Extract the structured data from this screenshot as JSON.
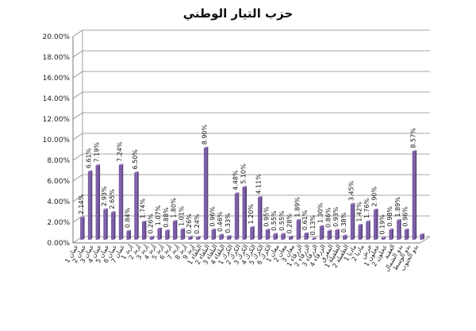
{
  "chart_data": {
    "type": "bar",
    "title": "حزب التيار الوطني",
    "ylim": [
      0,
      20
    ],
    "y_ticks": [
      "0.00%",
      "2.00%",
      "4.00%",
      "6.00%",
      "8.00%",
      "10.00%",
      "12.00%",
      "14.00%",
      "16.00%",
      "18.00%",
      "20.00%"
    ],
    "grid": true,
    "legend": "none",
    "bar_color": "#7e5fa8",
    "categories": [
      "عمان 1",
      "عمان 2",
      "عمان 3",
      "عمان 4",
      "عمان 5",
      "عمان 6",
      "عمان 7",
      "إربد 1",
      "إربد 2",
      "إربد 3",
      "إربد 4",
      "إربد 5",
      "إربد 6",
      "إربد 7",
      "إربد 8",
      "إربد 9",
      "البلقاء 1",
      "البلقاء 2",
      "البلقاء 3",
      "البلقاء 4",
      "الكرك 1",
      "الكرك 2",
      "الكرك 3",
      "الكرك 4",
      "الكرك 5",
      "الكرك 6",
      "معان 1",
      "معان 2",
      "معان 3",
      "الزرقاء 1",
      "الزرقاء 2",
      "الزرقاء 3",
      "الزرقاء 4",
      "المفرق",
      "الطفيلة 1",
      "الطفيلة 2",
      "مادبا 1",
      "مادبا 2",
      "جرش",
      "عجلون 1",
      "عجلون 2",
      "العقبة",
      "بدو الشمال",
      "بدو الوسط",
      "بدو الجنوب"
    ],
    "values": [
      2.14,
      6.61,
      7.19,
      2.93,
      2.65,
      7.24,
      0.84,
      6.5,
      1.74,
      0.26,
      1.07,
      0.88,
      1.8,
      1.01,
      0.26,
      0.24,
      8.9,
      0.96,
      0.46,
      0.33,
      4.48,
      5.1,
      1.2,
      4.11,
      0.95,
      0.55,
      0.55,
      0.28,
      1.89,
      0.61,
      0.13,
      1.3,
      0.86,
      0.93,
      0.38,
      3.45,
      1.42,
      1.76,
      2.9,
      0.19,
      0.98,
      1.89,
      0.96,
      8.57,
      0.5
    ],
    "data_labels": [
      "2.14%",
      "6.61%",
      "7.19%",
      "2.93%",
      "2.65%",
      "7.24%",
      "0.84%",
      "6.50%",
      "1.74%",
      "0.26%",
      "1.07%",
      "0.88%",
      "1.80%",
      "1.01%",
      "0.26%",
      "0.24%",
      "8.90%",
      "0.96%",
      "0.46%",
      "0.33%",
      "4.48%",
      "5.10%",
      "1.20%",
      "4.11%",
      "0.95%",
      "0.55%",
      "0.55%",
      "0.28%",
      "1.89%",
      "0.61%",
      "0.13%",
      "1.30%",
      "0.86%",
      "0.93%",
      "0.38%",
      "3.45%",
      "1.42%",
      "1.76%",
      "2.90%",
      "0.19%",
      "0.98%",
      "1.89%",
      "0.96%",
      "8.57%",
      ""
    ]
  }
}
